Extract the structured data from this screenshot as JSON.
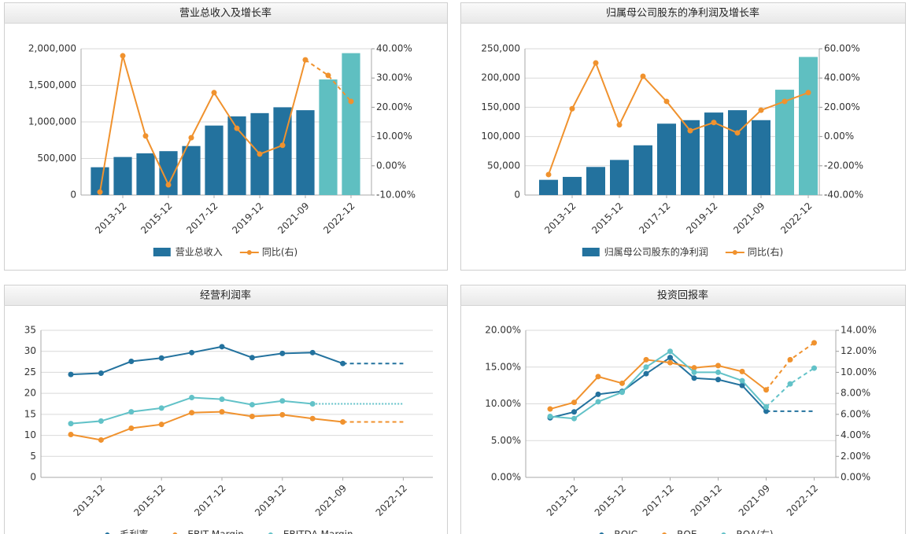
{
  "chart_data": [
    {
      "type": "bar-line",
      "title": "营业总收入及增长率",
      "categories": [
        null,
        "2013-12",
        null,
        "2015-12",
        null,
        "2017-12",
        null,
        "2019-12",
        null,
        "2021-09",
        null,
        "2022-12"
      ],
      "ylim": [
        0,
        2000000
      ],
      "yticks": [
        0,
        {
          "value": 500000,
          "label": "500,000"
        },
        {
          "value": 1000000,
          "label": "1,000,000"
        },
        {
          "value": 1500000,
          "label": "1,500,000"
        },
        {
          "value": 2000000,
          "label": "2,000,000"
        }
      ],
      "y2lim": [
        -10,
        40
      ],
      "y2ticks": [
        {
          "value": -10,
          "label": "-10.00%"
        },
        {
          "value": 0,
          "label": "0.00%"
        },
        {
          "value": 10,
          "label": "10.00%"
        },
        {
          "value": 20,
          "label": "20.00%"
        },
        {
          "value": 30,
          "label": "30.00%"
        },
        {
          "value": 40,
          "label": "40.00%"
        }
      ],
      "grid": true,
      "series": [
        {
          "name": "营业总收入",
          "type": "bar",
          "color": "#23729e",
          "colors": [
            "#23729e",
            "#23729e",
            "#23729e",
            "#23729e",
            "#23729e",
            "#23729e",
            "#23729e",
            "#23729e",
            "#23729e",
            "#23729e",
            "#5fbfc1",
            "#5fbfc1"
          ],
          "values": [
            380000,
            520000,
            570000,
            600000,
            670000,
            950000,
            1075000,
            1120000,
            1200000,
            1160000,
            1580000,
            1940000
          ]
        },
        {
          "name": "同比(右)",
          "type": "line",
          "axis": "y2",
          "color": "#f0922e",
          "dash_from": 9,
          "forecast_markers": true,
          "values": [
            -9,
            37.6,
            10.2,
            -6.5,
            9.6,
            25,
            12.8,
            4,
            7,
            36.2,
            30.9,
            22
          ]
        }
      ]
    },
    {
      "type": "bar-line",
      "title": "归属母公司股东的净利润及增长率",
      "categories": [
        null,
        "2013-12",
        null,
        "2015-12",
        null,
        "2017-12",
        null,
        "2019-12",
        null,
        "2021-09",
        null,
        "2022-12"
      ],
      "ylim": [
        0,
        250000
      ],
      "yticks": [
        0,
        {
          "value": 50000,
          "label": "50,000"
        },
        {
          "value": 100000,
          "label": "100,000"
        },
        {
          "value": 150000,
          "label": "150,000"
        },
        {
          "value": 200000,
          "label": "200,000"
        },
        {
          "value": 250000,
          "label": "250,000"
        }
      ],
      "y2lim": [
        -40,
        60
      ],
      "y2ticks": [
        {
          "value": -40,
          "label": "-40.00%"
        },
        {
          "value": -20,
          "label": "-20.00%"
        },
        {
          "value": 0,
          "label": "0.00%"
        },
        {
          "value": 20,
          "label": "20.00%"
        },
        {
          "value": 40,
          "label": "40.00%"
        },
        {
          "value": 60,
          "label": "60.00%"
        }
      ],
      "grid": true,
      "series": [
        {
          "name": "归属母公司股东的净利润",
          "type": "bar",
          "color": "#23729e",
          "colors": [
            "#23729e",
            "#23729e",
            "#23729e",
            "#23729e",
            "#23729e",
            "#23729e",
            "#23729e",
            "#23729e",
            "#23729e",
            "#23729e",
            "#5fbfc1",
            "#5fbfc1"
          ],
          "values": [
            26000,
            31000,
            48000,
            60000,
            85000,
            122000,
            128000,
            141000,
            145000,
            128000,
            180000,
            236000
          ]
        },
        {
          "name": "同比(右)",
          "type": "line",
          "axis": "y2",
          "color": "#f0922e",
          "forecast_markers": true,
          "values": [
            -26,
            19,
            50.3,
            8,
            41.2,
            24,
            4,
            9.6,
            2.5,
            18,
            24,
            30
          ]
        }
      ]
    },
    {
      "type": "line",
      "title": "经营利润率",
      "categories": [
        null,
        "2013-12",
        null,
        "2015-12",
        null,
        "2017-12",
        null,
        "2019-12",
        null,
        "2021-09",
        null,
        "2022-12"
      ],
      "ylim": [
        0,
        35
      ],
      "yticks": [
        0,
        5,
        10,
        15,
        20,
        25,
        30,
        35
      ],
      "grid": true,
      "series": [
        {
          "name": "毛利率",
          "type": "line",
          "color": "#23729e",
          "dash_from": 9,
          "values": [
            24.5,
            24.8,
            27.6,
            28.4,
            29.7,
            31.1,
            28.5,
            29.5,
            29.7,
            27.1,
            27.1,
            27.1
          ]
        },
        {
          "name": "EBIT Margin",
          "type": "line",
          "color": "#f0922e",
          "dash_from": 9,
          "values": [
            10.2,
            8.9,
            11.7,
            12.6,
            15.4,
            15.6,
            14.5,
            14.9,
            14.0,
            13.2,
            13.2,
            13.2
          ]
        },
        {
          "name": "EBITDA Margin",
          "type": "line",
          "color": "#62c2c8",
          "dash_from": 8,
          "dash_style": "dotted",
          "values": [
            12.8,
            13.4,
            15.6,
            16.5,
            19.0,
            18.6,
            17.3,
            18.2,
            17.5,
            17.5,
            17.5,
            17.5
          ]
        }
      ]
    },
    {
      "type": "line",
      "title": "投资回报率",
      "categories": [
        null,
        "2013-12",
        null,
        "2015-12",
        null,
        "2017-12",
        null,
        "2019-12",
        null,
        "2021-09",
        null,
        "2022-12"
      ],
      "ylim": [
        0,
        20
      ],
      "yticks": [
        {
          "value": 0,
          "label": "0.00%"
        },
        {
          "value": 5,
          "label": "5.00%"
        },
        {
          "value": 10,
          "label": "10.00%"
        },
        {
          "value": 15,
          "label": "15.00%"
        },
        {
          "value": 20,
          "label": "20.00%"
        }
      ],
      "y2lim": [
        0,
        14
      ],
      "y2ticks": [
        {
          "value": 0,
          "label": "0.00%"
        },
        {
          "value": 2,
          "label": "2.00%"
        },
        {
          "value": 4,
          "label": "4.00%"
        },
        {
          "value": 6,
          "label": "6.00%"
        },
        {
          "value": 8,
          "label": "8.00%"
        },
        {
          "value": 10,
          "label": "10.00%"
        },
        {
          "value": 12,
          "label": "12.00%"
        },
        {
          "value": 14,
          "label": "14.00%"
        }
      ],
      "grid": true,
      "series": [
        {
          "name": "ROIC",
          "type": "line",
          "color": "#23729e",
          "dash_from": 9,
          "values": [
            8.1,
            8.9,
            11.3,
            11.7,
            14.1,
            16.3,
            13.5,
            13.3,
            12.5,
            9.0,
            9.0,
            9.0
          ]
        },
        {
          "name": "ROE",
          "type": "line",
          "color": "#f0922e",
          "dash_from": 9,
          "forecast_markers": true,
          "values": [
            9.3,
            10.2,
            13.7,
            12.8,
            16.0,
            15.6,
            14.9,
            15.2,
            14.4,
            11.9,
            16.0,
            18.3
          ]
        },
        {
          "name": "ROA(右)",
          "type": "line",
          "axis": "y2",
          "color": "#62c2c8",
          "dash_from": 9,
          "forecast_markers": true,
          "values": [
            5.8,
            5.6,
            7.2,
            8.1,
            10.5,
            12.0,
            10.0,
            10.0,
            9.2,
            6.7,
            8.9,
            10.4
          ]
        }
      ]
    }
  ]
}
